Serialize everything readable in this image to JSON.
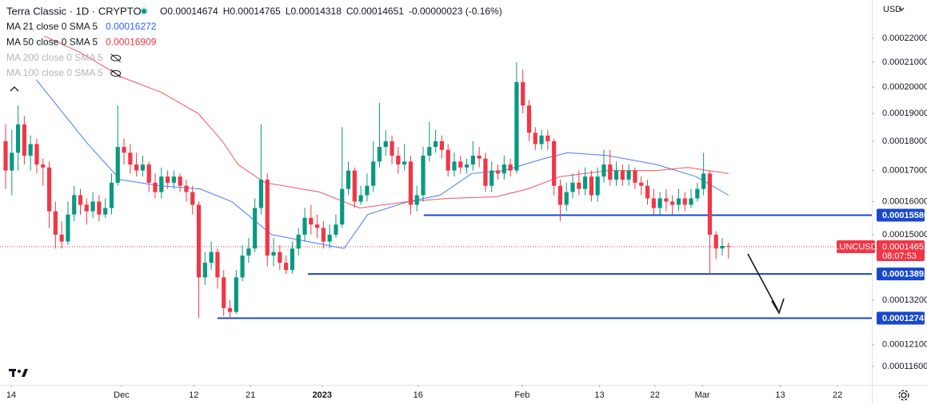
{
  "chart_data": {
    "type": "candlestick",
    "title": "Terra Classic · 1D · CRYPTO",
    "ohlc_text": [
      "O0.00014674",
      "H0.00014765",
      "L0.00014318",
      "C0.00014651",
      "-0.00000023 (-0.16%)"
    ],
    "indicators": [
      {
        "name": "MA 21 close 0 SMA 5",
        "value": "0.00016272",
        "color": "#2962ff"
      },
      {
        "name": "MA 50 close 0 SMA 5",
        "value": "0.00016909",
        "color": "#f23645"
      },
      {
        "name": "MA 200 close 0 SMA 5",
        "hidden": true
      },
      {
        "name": "MA 100 close 0 SMA 5",
        "hidden": true
      }
    ],
    "currency": "USD",
    "log_scale": true,
    "up_color": "#089981",
    "down_color": "#f23645",
    "ylim": [
      0.0001119,
      0.0002371
    ],
    "yticks": [
      {
        "value": 0.00022,
        "label": "0.00022000"
      },
      {
        "value": 0.00021,
        "label": "0.00021000"
      },
      {
        "value": 0.0002,
        "label": "0.00020000"
      },
      {
        "value": 0.00019,
        "label": "0.00019000"
      },
      {
        "value": 0.00018,
        "label": "0.00018000"
      },
      {
        "value": 0.00017,
        "label": "0.00017000"
      },
      {
        "value": 0.00016,
        "label": "0.00016000"
      },
      {
        "value": 0.00015,
        "label": "0.00015000"
      },
      {
        "value": 0.000132,
        "label": "0.00013200"
      },
      {
        "value": 0.000121,
        "label": "0.00012100"
      },
      {
        "value": 0.000116,
        "label": "0.00011600"
      }
    ],
    "xlim": [
      -0.9,
      139
    ],
    "xticks": [
      {
        "value": 0.9,
        "label": "14"
      },
      {
        "value": 18.6,
        "label": "Dec"
      },
      {
        "value": 30.2,
        "label": "12"
      },
      {
        "value": 39.3,
        "label": "21"
      },
      {
        "value": 50.8,
        "label": "2023"
      },
      {
        "value": 66.2,
        "label": "16"
      },
      {
        "value": 82.9,
        "label": "Feb"
      },
      {
        "value": 95.3,
        "label": "13"
      },
      {
        "value": 104.2,
        "label": "22"
      },
      {
        "value": 111.8,
        "label": "Mar"
      },
      {
        "value": 124.3,
        "label": "13"
      },
      {
        "value": 133.5,
        "label": "22"
      }
    ],
    "open": [
      0.00018,
      0.00017,
      0.000176,
      0.000186,
      0.000175,
      0.000179,
      0.000172,
      0.000171,
      0.000157,
      0.00015,
      0.000148,
      0.000156,
      0.000162,
      0.000159,
      0.000157,
      0.00016,
      0.000156,
      0.000158,
      0.000166,
      0.000178,
      0.000176,
      0.000172,
      0.00017,
      0.000172,
      0.000166,
      0.000163,
      0.000168,
      0.000166,
      0.000168,
      0.000165,
      0.000163,
      0.000159,
      0.000138,
      0.000142,
      0.000145,
      0.000138,
      0.00013,
      0.000129,
      0.000138,
      0.000144,
      0.000146,
      0.000158,
      0.000167,
      0.000144,
      0.000145,
      0.000142,
      0.00014,
      0.000146,
      0.00015,
      0.000155,
      0.000153,
      0.000152,
      0.000148,
      0.00015,
      0.000153,
      0.000164,
      0.00017,
      0.00016,
      0.000162,
      0.000165,
      0.000173,
      0.000178,
      0.00018,
      0.000175,
      0.000172,
      0.000173,
      0.000159,
      0.000162,
      0.000175,
      0.000178,
      0.00018,
      0.000177,
      0.00017,
      0.000173,
      0.000171,
      0.000172,
      0.000175,
      0.000174,
      0.000165,
      0.00017,
      0.000169,
      0.000172,
      0.00017,
      0.000202,
      0.000193,
      0.000183,
      0.000179,
      0.000182,
      0.00018,
      0.000165,
      0.000159,
      0.000163,
      0.000166,
      0.000164,
      0.000168,
      0.000162,
      0.000168,
      0.000172,
      0.000167,
      0.00017,
      0.000167,
      0.00017,
      0.000166,
      0.000165,
      0.000161,
      0.000158,
      0.000161,
      0.00016,
      0.000159,
      0.000161,
      0.000159,
      0.000161,
      0.000164,
      0.000169,
      0.00015,
      0.000146,
      0.00014674
    ],
    "high": [
      0.000186,
      0.000184,
      0.000193,
      0.000189,
      0.000182,
      0.000181,
      0.000174,
      0.000173,
      0.00016,
      0.000154,
      0.00016,
      0.000165,
      0.000164,
      0.000161,
      0.000163,
      0.000162,
      0.000161,
      0.000169,
      0.000193,
      0.000181,
      0.000179,
      0.000176,
      0.000175,
      0.000173,
      0.000169,
      0.000171,
      0.00017,
      0.00017,
      0.000169,
      0.000167,
      0.000165,
      0.00016,
      0.000145,
      0.000148,
      0.000146,
      0.00014,
      0.000132,
      0.00014,
      0.000147,
      0.000149,
      0.000161,
      0.000186,
      0.000169,
      0.000149,
      0.000147,
      0.000144,
      0.000148,
      0.000152,
      0.000158,
      0.000159,
      0.000156,
      0.000154,
      0.000153,
      0.000156,
      0.000185,
      0.000173,
      0.000171,
      0.000165,
      0.000169,
      0.00018,
      0.000194,
      0.000184,
      0.000182,
      0.000178,
      0.000179,
      0.000175,
      0.000165,
      0.000178,
      0.000187,
      0.000184,
      0.000182,
      0.000179,
      0.000176,
      0.000175,
      0.000174,
      0.00018,
      0.000178,
      0.000176,
      0.000173,
      0.000172,
      0.000175,
      0.000174,
      0.00021,
      0.000207,
      0.000195,
      0.000185,
      0.000184,
      0.000184,
      0.000181,
      0.000167,
      0.000166,
      0.000169,
      0.00017,
      0.000171,
      0.00017,
      0.000171,
      0.000177,
      0.000177,
      0.000173,
      0.000172,
      0.000172,
      0.000171,
      0.000168,
      0.000167,
      0.000164,
      0.000163,
      0.000164,
      0.000162,
      0.000164,
      0.000163,
      0.000164,
      0.000166,
      0.000176,
      0.00017,
      0.000151,
      0.000149,
      0.00014765
    ],
    "low": [
      0.000164,
      0.000162,
      0.00017,
      0.000172,
      0.00017,
      0.000169,
      0.000165,
      0.000152,
      0.000146,
      0.000146,
      0.000147,
      0.000154,
      0.000156,
      0.000153,
      0.000155,
      0.000154,
      0.000155,
      0.000156,
      0.000165,
      0.000172,
      0.000169,
      0.000168,
      0.000168,
      0.000163,
      0.000161,
      0.000161,
      0.000164,
      0.000164,
      0.000163,
      0.00016,
      0.000156,
      0.0001275,
      0.000136,
      0.00014,
      0.000135,
      0.000128,
      0.0001275,
      0.0001285,
      0.000137,
      0.000142,
      0.000145,
      0.000156,
      0.000141,
      0.000141,
      0.00014,
      0.0001389,
      0.000139,
      0.000144,
      0.000148,
      0.00015,
      0.000149,
      0.000146,
      0.000146,
      0.000149,
      0.000152,
      0.000162,
      0.000158,
      0.000159,
      0.00016,
      0.000163,
      0.000171,
      0.000175,
      0.000172,
      0.000169,
      0.00017,
      0.000156,
      0.000157,
      0.00016,
      0.000173,
      0.000176,
      0.000174,
      0.000168,
      0.000168,
      0.000169,
      0.000169,
      0.00017,
      0.000171,
      0.000163,
      0.000163,
      0.000167,
      0.000167,
      0.000168,
      0.000169,
      0.00019,
      0.00018,
      0.000177,
      0.000177,
      0.000177,
      0.000162,
      0.000154,
      0.000157,
      0.000161,
      0.000162,
      0.000162,
      0.00016,
      0.00016,
      0.000166,
      0.000165,
      0.000165,
      0.000165,
      0.000165,
      0.000164,
      0.000162,
      0.000159,
      0.000156,
      0.000156,
      0.000157,
      0.000156,
      0.000157,
      0.000157,
      0.000158,
      0.00016,
      0.000162,
      0.0001389,
      0.000143,
      0.000144,
      0.00014318
    ],
    "close": [
      0.00017,
      0.000176,
      0.000186,
      0.000175,
      0.000179,
      0.000172,
      0.000171,
      0.000157,
      0.00015,
      0.000148,
      0.000156,
      0.000162,
      0.000159,
      0.000157,
      0.00016,
      0.000156,
      0.000158,
      0.000166,
      0.000178,
      0.000176,
      0.000172,
      0.00017,
      0.000172,
      0.000166,
      0.000163,
      0.000168,
      0.000166,
      0.000168,
      0.000165,
      0.000163,
      0.000159,
      0.000138,
      0.000142,
      0.000145,
      0.000138,
      0.00013,
      0.000129,
      0.000138,
      0.000144,
      0.000146,
      0.000158,
      0.000167,
      0.000144,
      0.000145,
      0.000142,
      0.00014,
      0.000146,
      0.00015,
      0.000155,
      0.000153,
      0.000152,
      0.000148,
      0.00015,
      0.000153,
      0.000164,
      0.00017,
      0.00016,
      0.000162,
      0.000165,
      0.000173,
      0.000178,
      0.00018,
      0.000175,
      0.000172,
      0.000173,
      0.000159,
      0.000162,
      0.000175,
      0.000178,
      0.00018,
      0.000177,
      0.00017,
      0.000173,
      0.000171,
      0.000172,
      0.000175,
      0.000174,
      0.000165,
      0.00017,
      0.000169,
      0.000172,
      0.00017,
      0.000202,
      0.000193,
      0.000183,
      0.000179,
      0.000182,
      0.00018,
      0.000165,
      0.000159,
      0.000163,
      0.000166,
      0.000164,
      0.000168,
      0.000162,
      0.000168,
      0.000172,
      0.000167,
      0.00017,
      0.000167,
      0.00017,
      0.000166,
      0.000165,
      0.000161,
      0.000158,
      0.000161,
      0.00016,
      0.000159,
      0.000161,
      0.000159,
      0.000161,
      0.000164,
      0.000169,
      0.00015,
      0.000146,
      0.00014674,
      0.00014651
    ],
    "ma_series": [
      {
        "name": "MA 21 close 0 SMA 5",
        "color": "#2962ff",
        "x": [
          4.9,
          13.2,
          18.4,
          24.8,
          31.2,
          36.3,
          42.7,
          54.3,
          58.1,
          64.6,
          69.7,
          74.8,
          80,
          86.4,
          90.2,
          96.7,
          104.4,
          110.8,
          116
        ],
        "values": [
          0.000203,
          0.000179,
          0.000167,
          0.000165,
          0.000164,
          0.00016,
          0.00015,
          0.000146,
          0.000156,
          0.00016,
          0.000162,
          0.000169,
          0.00017,
          0.000174,
          0.000176,
          0.000175,
          0.000172,
          0.000168,
          0.000162
        ]
      },
      {
        "name": "MA 50 close 0 SMA 5",
        "color": "#f23645",
        "x": [
          6.2,
          12,
          18.6,
          25,
          30.9,
          34.8,
          37.3,
          41.6,
          50.4,
          56.8,
          64.6,
          71,
          78.7,
          83.8,
          89,
          96.7,
          104.4,
          109.5,
          116
        ],
        "values": [
          0.000221,
          0.000214,
          0.000204,
          0.000198,
          0.00019,
          0.00018,
          0.000172,
          0.000166,
          0.000163,
          0.000158,
          0.00016,
          0.000161,
          0.0001615,
          0.000164,
          0.000168,
          0.00017,
          0.00017,
          0.000171,
          0.000169
        ]
      }
    ],
    "levels": [
      {
        "value": 0.0001558,
        "label": "0.00015580",
        "start": 67.1,
        "color": "#1848cc"
      },
      {
        "value": 0.00013892,
        "label": "0.00013892",
        "start": 48.5,
        "color": "#1848cc"
      },
      {
        "value": 0.00012745,
        "label": "0.00012745",
        "start": 34,
        "color": "#1848cc"
      }
    ],
    "last_price": {
      "symbol": "LUNCUSD",
      "value": 0.00014651,
      "label": "0.00014651",
      "countdown": "08:07:53",
      "color": "#f23645"
    }
  }
}
